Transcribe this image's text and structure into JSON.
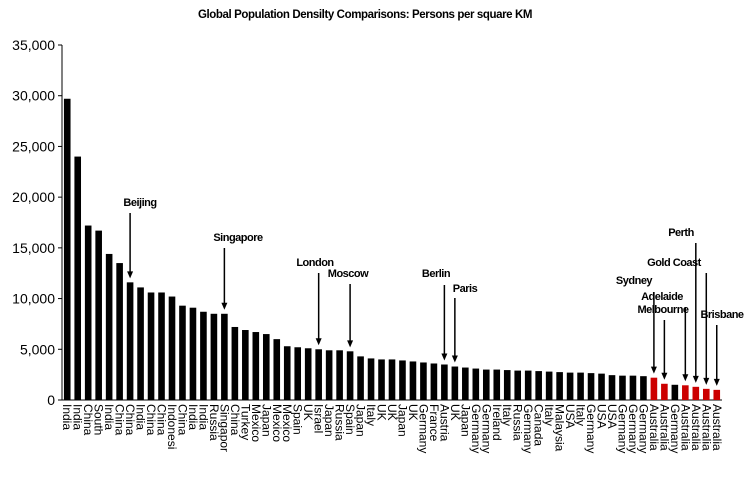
{
  "chart_data": {
    "type": "bar",
    "title": "Global Population Densilty Comparisons: Persons per square KM",
    "categories": [
      "India",
      "India",
      "China",
      "South",
      "India",
      "China",
      "China",
      "India",
      "China",
      "China",
      "Indonesi",
      "China",
      "India",
      "India",
      "Russia",
      "Singapor",
      "China",
      "Turkey",
      "Mexico",
      "Japan",
      "Mexico",
      "Mexico",
      "Spain",
      "UK",
      "Israel",
      "Japan",
      "Russia",
      "Spain",
      "Japan",
      "Italy",
      "UK",
      "UK",
      "Japan",
      "UK",
      "Germany",
      "France",
      "Austria",
      "UK",
      "Japan",
      "Germany",
      "Germany",
      "Ireland",
      "Italy",
      "Russia",
      "Germany",
      "Canada",
      "Italy",
      "Malaysia",
      "USA",
      "Italy",
      "Germany",
      "USA",
      "USA",
      "Germany",
      "Germany",
      "Germany",
      "Australia",
      "Australia",
      "Germany",
      "Australia",
      "Australia",
      "Australia",
      "Australia"
    ],
    "values": [
      29700,
      24000,
      17200,
      16700,
      14400,
      13500,
      11600,
      11100,
      10600,
      10600,
      10200,
      9300,
      9100,
      8700,
      8500,
      8500,
      7200,
      6900,
      6700,
      6500,
      6000,
      5300,
      5200,
      5100,
      5000,
      4900,
      4900,
      4800,
      4300,
      4100,
      4000,
      4000,
      3900,
      3800,
      3700,
      3600,
      3500,
      3300,
      3200,
      3100,
      3000,
      3000,
      2950,
      2900,
      2900,
      2850,
      2800,
      2750,
      2700,
      2700,
      2650,
      2600,
      2450,
      2400,
      2400,
      2350,
      2200,
      1600,
      1500,
      1450,
      1300,
      1100,
      1000
    ],
    "colors": [
      "#000",
      "#000",
      "#000",
      "#000",
      "#000",
      "#000",
      "#000",
      "#000",
      "#000",
      "#000",
      "#000",
      "#000",
      "#000",
      "#000",
      "#000",
      "#000",
      "#000",
      "#000",
      "#000",
      "#000",
      "#000",
      "#000",
      "#000",
      "#000",
      "#000",
      "#000",
      "#000",
      "#000",
      "#000",
      "#000",
      "#000",
      "#000",
      "#000",
      "#000",
      "#000",
      "#000",
      "#000",
      "#000",
      "#000",
      "#000",
      "#000",
      "#000",
      "#000",
      "#000",
      "#000",
      "#000",
      "#000",
      "#000",
      "#000",
      "#000",
      "#000",
      "#000",
      "#000",
      "#000",
      "#000",
      "#000",
      "#cc0000",
      "#cc0000",
      "#000",
      "#cc0000",
      "#cc0000",
      "#cc0000",
      "#cc0000"
    ],
    "ylim": [
      0,
      35000
    ],
    "yticks": [
      0,
      {
        "value": 5000,
        "label": "5,000"
      },
      {
        "value": 10000,
        "label": "10,000"
      },
      {
        "value": 15000,
        "label": "15,000"
      },
      {
        "value": 20000,
        "label": "20,000"
      },
      {
        "value": 25000,
        "label": "25,000"
      },
      {
        "value": 30000,
        "label": "30,000"
      },
      {
        "value": 35000,
        "label": "35,000"
      }
    ],
    "annotations": [
      "Beijing",
      "Singapore",
      "London",
      "Moscow",
      "Berlin",
      "Paris",
      "Sydney",
      "Melbourne",
      "Adelaide",
      "Perth",
      "Gold Coast",
      "Brisbane"
    ]
  }
}
